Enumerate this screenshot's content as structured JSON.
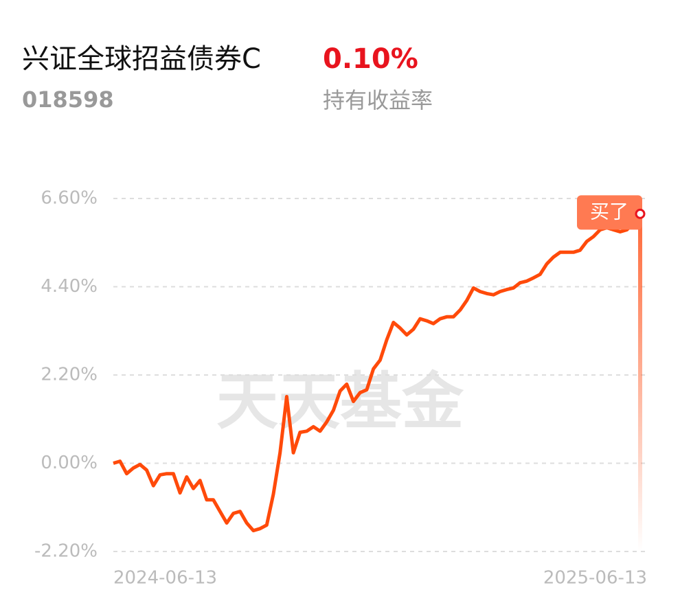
{
  "header": {
    "title": "兴证全球招益债券C",
    "code": "018598",
    "return_value": "0.10%",
    "return_label": "持有收益率"
  },
  "watermark": "天天基金",
  "marker_label": "买了",
  "chart_data": {
    "type": "line",
    "categories": [
      "2024-06-13",
      null,
      null,
      null,
      null,
      null,
      null,
      null,
      null,
      null,
      null,
      null,
      null,
      null,
      null,
      null,
      null,
      null,
      null,
      null,
      null,
      null,
      null,
      null,
      null,
      null,
      null,
      null,
      null,
      null,
      null,
      null,
      null,
      null,
      null,
      null,
      null,
      null,
      null,
      null,
      null,
      null,
      null,
      null,
      null,
      null,
      null,
      null,
      null,
      null,
      null,
      null,
      null,
      null,
      null,
      null,
      null,
      null,
      null,
      null,
      null,
      null,
      null,
      null,
      null,
      null,
      null,
      null,
      null,
      null,
      null,
      null,
      null,
      null,
      null,
      null,
      null,
      null,
      null,
      "2025-06-13"
    ],
    "values": [
      0.0,
      0.05,
      -0.26,
      -0.12,
      -0.03,
      -0.17,
      -0.56,
      -0.29,
      -0.26,
      -0.26,
      -0.74,
      -0.34,
      -0.63,
      -0.43,
      -0.91,
      -0.91,
      -1.2,
      -1.49,
      -1.25,
      -1.2,
      -1.49,
      -1.68,
      -1.63,
      -1.54,
      -0.77,
      0.26,
      1.66,
      0.26,
      0.77,
      0.8,
      0.91,
      0.8,
      1.03,
      1.32,
      1.8,
      1.97,
      1.54,
      1.76,
      1.83,
      2.35,
      2.57,
      3.08,
      3.51,
      3.37,
      3.2,
      3.34,
      3.6,
      3.55,
      3.48,
      3.6,
      3.65,
      3.65,
      3.82,
      4.06,
      4.37,
      4.28,
      4.23,
      4.2,
      4.28,
      4.33,
      4.37,
      4.5,
      4.54,
      4.62,
      4.71,
      4.97,
      5.14,
      5.26,
      5.26,
      5.26,
      5.31,
      5.53,
      5.65,
      5.82,
      5.87,
      5.82,
      5.77,
      5.82,
      5.99,
      6.08
    ],
    "color": "#ff4a0a",
    "ylim": [
      -2.2,
      6.6
    ],
    "yticks": [
      {
        "value": -2.2,
        "label": "-2.20%"
      },
      {
        "value": 0,
        "label": "0.00%"
      },
      {
        "value": 2.2,
        "label": "2.20%"
      },
      {
        "value": 4.4,
        "label": "4.40%"
      },
      {
        "value": 6.6,
        "label": "6.60%"
      }
    ],
    "grid": true
  }
}
